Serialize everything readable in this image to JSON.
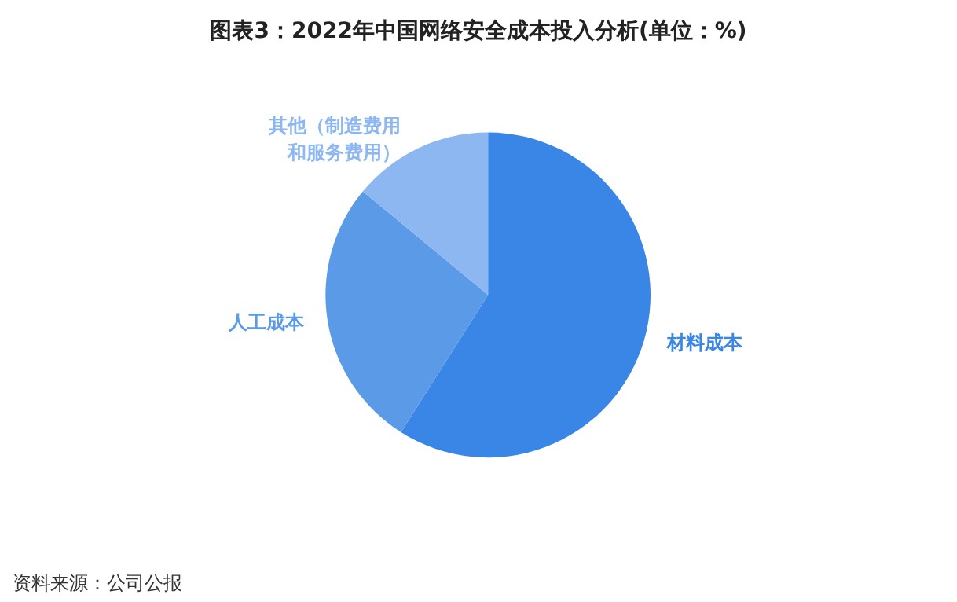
{
  "chart_data": {
    "type": "pie",
    "title": "图表3：2022年中国网络安全成本投入分析(单位：%)",
    "categories": [
      "材料成本",
      "人工成本",
      "其他（制造费用和服务费用）"
    ],
    "values": [
      59,
      27,
      14
    ],
    "colors": [
      "#3a86e6",
      "#5b9ae6",
      "#8db7f0"
    ],
    "legend": false,
    "annotations": [
      "资料来源：公司公报"
    ]
  }
}
